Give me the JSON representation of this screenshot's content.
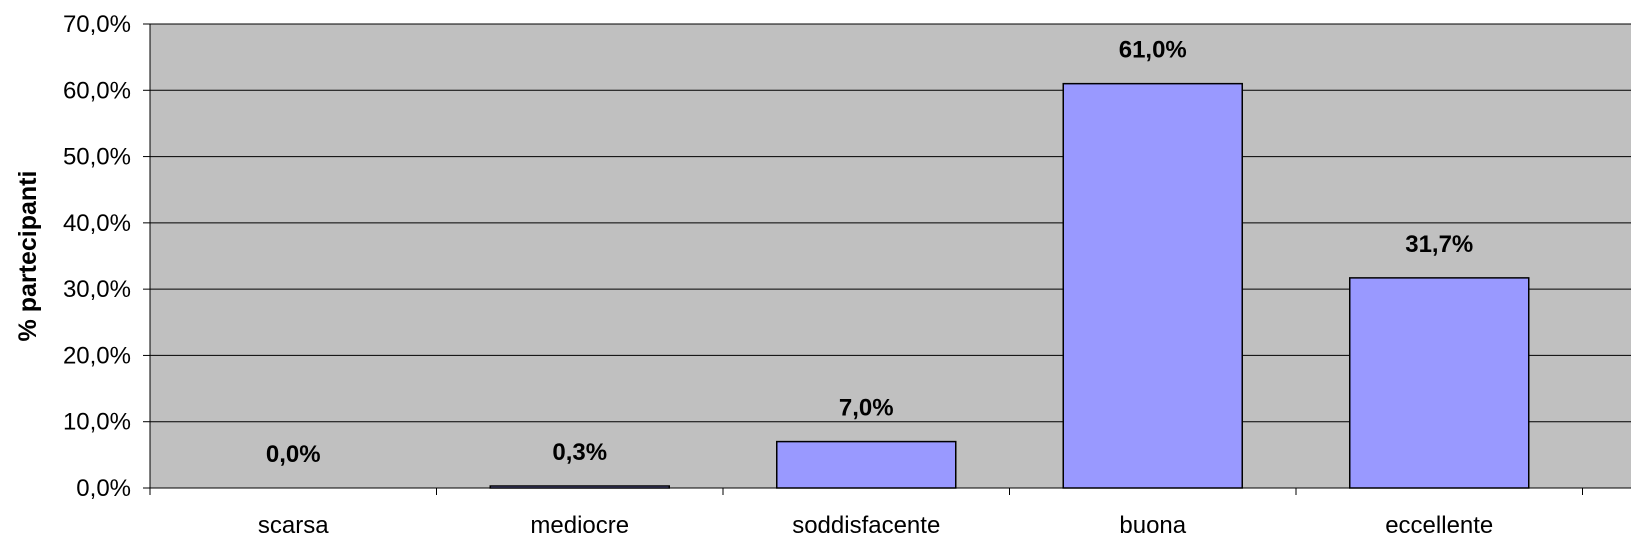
{
  "chart_data": {
    "type": "bar",
    "categories": [
      "scarsa",
      "mediocre",
      "soddisfacente",
      "buona",
      "eccellente"
    ],
    "values": [
      0.0,
      0.3,
      7.0,
      61.0,
      31.7
    ],
    "data_labels": [
      "0,0%",
      "0,3%",
      "7,0%",
      "61,0%",
      "31,7%"
    ],
    "y_ticks": [
      0,
      10,
      20,
      30,
      40,
      50,
      60,
      70
    ],
    "y_tick_labels": [
      "0,0%",
      "10,0%",
      "20,0%",
      "30,0%",
      "40,0%",
      "50,0%",
      "60,0%",
      "70,0%"
    ],
    "ylabel": "% partecipanti",
    "xlabel": "",
    "ylim": [
      0,
      70
    ],
    "grid": true,
    "legend": "none",
    "colors": {
      "plot_background": "#c0c0c0",
      "bar_fill": "#9999ff",
      "bar_stroke": "#000000",
      "gridline": "#000000"
    }
  }
}
